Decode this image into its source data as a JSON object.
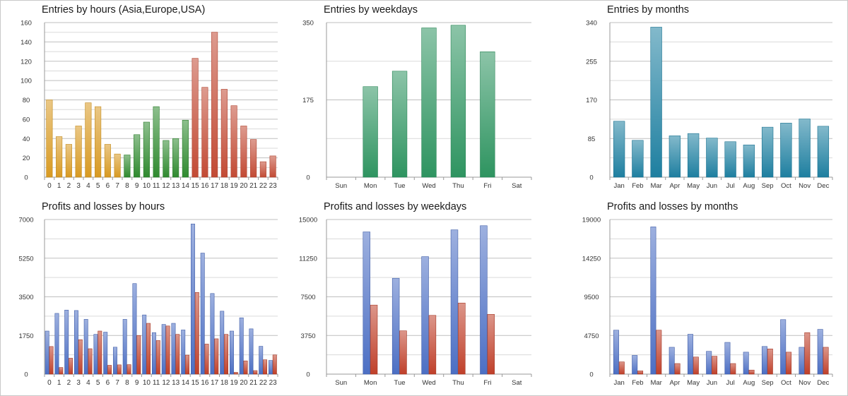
{
  "chart_data": [
    {
      "type": "bar",
      "title": "Entries by hours (Asia,Europe,USA)",
      "categories": [
        "0",
        "1",
        "2",
        "3",
        "4",
        "5",
        "6",
        "7",
        "8",
        "9",
        "10",
        "11",
        "12",
        "13",
        "14",
        "15",
        "16",
        "17",
        "18",
        "19",
        "20",
        "21",
        "22",
        "23"
      ],
      "values": [
        80,
        42,
        34,
        53,
        77,
        73,
        34,
        24,
        23,
        44,
        57,
        73,
        38,
        40,
        59,
        123,
        93,
        150,
        91,
        74,
        53,
        39,
        16,
        22
      ],
      "bar_colors_by_index": [
        "#d89a22",
        "#d89a22",
        "#d89a22",
        "#d89a22",
        "#d89a22",
        "#d89a22",
        "#d89a22",
        "#d89a22",
        "#2f8a2f",
        "#2f8a2f",
        "#2f8a2f",
        "#2f8a2f",
        "#2f8a2f",
        "#2f8a2f",
        "#2f8a2f",
        "#c24a34",
        "#c24a34",
        "#c24a34",
        "#c24a34",
        "#c24a34",
        "#c24a34",
        "#c24a34",
        "#c24a34",
        "#c24a34"
      ],
      "ylim": [
        0,
        160
      ],
      "yticks": [
        "0",
        "20",
        "40",
        "60",
        "80",
        "100",
        "120",
        "140",
        "160"
      ],
      "grid": true,
      "xlabel": "",
      "ylabel": ""
    },
    {
      "type": "bar",
      "title": "Entries by weekdays",
      "categories": [
        "Sun",
        "Mon",
        "Tue",
        "Wed",
        "Thu",
        "Fri",
        "Sat"
      ],
      "values": [
        0,
        205,
        240,
        338,
        344,
        284,
        0
      ],
      "color": "#2e9460",
      "ylim": [
        0,
        350
      ],
      "yticks": [
        "0",
        "175",
        "350"
      ],
      "grid": true,
      "xlabel": "",
      "ylabel": ""
    },
    {
      "type": "bar",
      "title": "Entries by months",
      "categories": [
        "Jan",
        "Feb",
        "Mar",
        "Apr",
        "May",
        "Jun",
        "Jul",
        "Aug",
        "Sep",
        "Oct",
        "Nov",
        "Dec"
      ],
      "values": [
        123,
        81,
        330,
        91,
        96,
        86,
        78,
        71,
        110,
        119,
        128,
        112
      ],
      "color": "#1e7fa0",
      "ylim": [
        0,
        340
      ],
      "yticks": [
        "0",
        "85",
        "170",
        "255",
        "340"
      ],
      "grid": true,
      "xlabel": "",
      "ylabel": ""
    },
    {
      "type": "bar",
      "title": "Profits and losses by hours",
      "categories": [
        "0",
        "1",
        "2",
        "3",
        "4",
        "5",
        "6",
        "7",
        "8",
        "9",
        "10",
        "11",
        "12",
        "13",
        "14",
        "15",
        "16",
        "17",
        "18",
        "19",
        "20",
        "21",
        "22",
        "23"
      ],
      "series": [
        {
          "values": [
            1950,
            2750,
            2900,
            2880,
            2480,
            1800,
            1900,
            1220,
            2480,
            4100,
            2680,
            1880,
            2250,
            2300,
            2000,
            6800,
            5480,
            3650,
            2850,
            1950,
            2550,
            2050,
            1260,
            620
          ],
          "color": "#4c6fc4"
        },
        {
          "values": [
            1250,
            300,
            720,
            1560,
            1150,
            1950,
            400,
            420,
            430,
            1750,
            2300,
            1520,
            2180,
            1800,
            860,
            3700,
            1360,
            1600,
            1800,
            80,
            600,
            160,
            650,
            870
          ],
          "color": "#c0402a"
        }
      ],
      "ylim": [
        0,
        7000
      ],
      "yticks": [
        "0",
        "1750",
        "3500",
        "5250",
        "7000"
      ],
      "grid": true,
      "xlabel": "",
      "ylabel": ""
    },
    {
      "type": "bar",
      "title": "Profits and losses by weekdays",
      "categories": [
        "Sun",
        "Mon",
        "Tue",
        "Wed",
        "Thu",
        "Fri",
        "Sat"
      ],
      "series": [
        {
          "values": [
            0,
            13800,
            9300,
            11400,
            14000,
            14400,
            0
          ],
          "color": "#4c6fc4"
        },
        {
          "values": [
            0,
            6700,
            4200,
            5700,
            6900,
            5800,
            0
          ],
          "color": "#c0402a"
        }
      ],
      "ylim": [
        0,
        15000
      ],
      "yticks": [
        "0",
        "3750",
        "7500",
        "11250",
        "15000"
      ],
      "grid": true,
      "xlabel": "",
      "ylabel": ""
    },
    {
      "type": "bar",
      "title": "Profits and losses by months",
      "categories": [
        "Jan",
        "Feb",
        "Mar",
        "Apr",
        "May",
        "Jun",
        "Jul",
        "Aug",
        "Sep",
        "Oct",
        "Nov",
        "Dec"
      ],
      "series": [
        {
          "values": [
            5400,
            2300,
            18100,
            3300,
            4900,
            2800,
            3900,
            2700,
            3400,
            6700,
            3300,
            5500
          ],
          "color": "#4c6fc4"
        },
        {
          "values": [
            1500,
            400,
            5400,
            1300,
            2100,
            2200,
            1300,
            500,
            3100,
            2700,
            5100,
            3300
          ],
          "color": "#c0402a"
        }
      ],
      "ylim": [
        0,
        19000
      ],
      "yticks": [
        "0",
        "4750",
        "9500",
        "14250",
        "19000"
      ],
      "grid": true,
      "xlabel": "",
      "ylabel": ""
    }
  ]
}
